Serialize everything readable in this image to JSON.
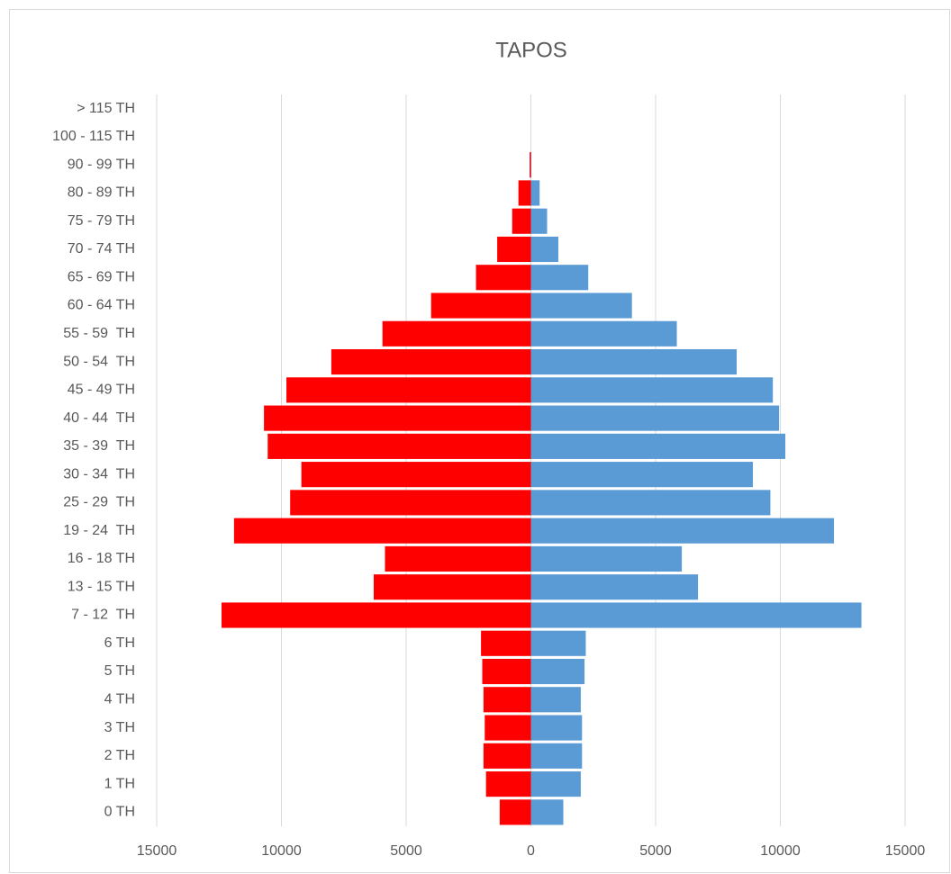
{
  "chart_data": {
    "type": "pyramid",
    "title": "TAPOS",
    "categories": [
      "> 115 TH",
      "100 - 115 TH",
      "90 - 99 TH",
      "80 - 89 TH",
      "75 - 79 TH",
      "70 - 74 TH",
      "65 - 69 TH",
      "60 - 64 TH",
      "55 - 59  TH",
      "50 - 54  TH",
      "45 - 49 TH",
      "40 - 44  TH",
      "35 - 39  TH",
      "30 - 34  TH",
      "25 - 29  TH",
      "19 - 24  TH",
      "16 - 18 TH",
      "13 - 15 TH",
      "7 - 12  TH",
      "6 TH",
      "5 TH",
      "4 TH",
      "3 TH",
      "2 TH",
      "1 TH",
      "0 TH"
    ],
    "series": [
      {
        "color": "#ff0000",
        "values": [
          0,
          0,
          -50,
          -500,
          -750,
          -1350,
          -2200,
          -4000,
          -5950,
          -8000,
          -9800,
          -10700,
          -10550,
          -9200,
          -9650,
          -11900,
          -5850,
          -6300,
          -12400,
          -2000,
          -1950,
          -1900,
          -1850,
          -1900,
          -1800,
          -1250
        ]
      },
      {
        "color": "#5b9bd5",
        "values": [
          0,
          0,
          20,
          350,
          650,
          1100,
          2300,
          4050,
          5850,
          8250,
          9700,
          9950,
          10200,
          8900,
          9600,
          12150,
          6050,
          6700,
          13250,
          2200,
          2150,
          2000,
          2050,
          2050,
          2000,
          1300
        ]
      }
    ],
    "xlim": [
      -15000,
      15000
    ],
    "xticks": [
      {
        "value": -15000,
        "label": "15000"
      },
      {
        "value": -10000,
        "label": "10000"
      },
      {
        "value": -5000,
        "label": "5000"
      },
      0,
      5000,
      10000,
      15000
    ],
    "grid": true
  }
}
